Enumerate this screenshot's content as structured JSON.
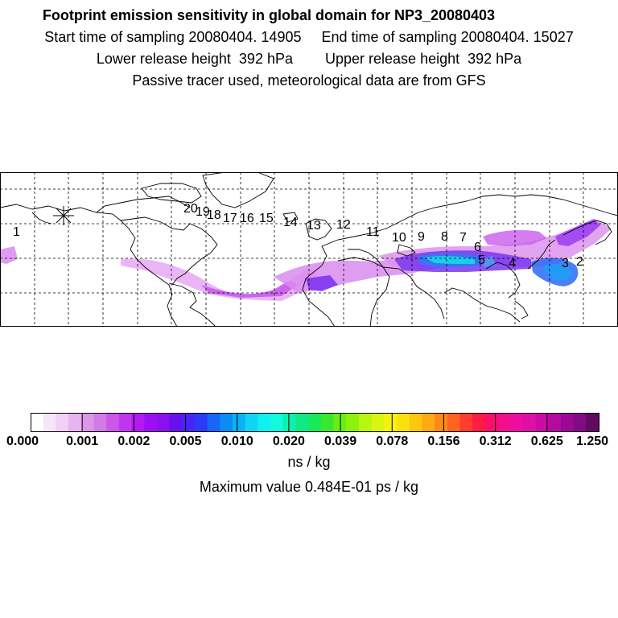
{
  "header": {
    "title": "Footprint emission sensitivity in global domain for NP3_20080403",
    "start_label": "Start time of sampling 20080404. 14905",
    "end_label": "End time of sampling 20080404. 15027",
    "lower_label": "Lower release height  392 hPa",
    "upper_label": "Upper release height  392 hPa",
    "note": "Passive tracer used, meteorological data are from GFS"
  },
  "map": {
    "projection": "equirectangular",
    "lon_range": [
      -180,
      180
    ],
    "lat_range": [
      -10,
      90
    ],
    "release_marker": "release-star",
    "track_labels": [
      "1",
      "2",
      "3",
      "4",
      "5",
      "6",
      "7",
      "8",
      "9",
      "10",
      "11",
      "12",
      "13",
      "14",
      "15",
      "16",
      "17",
      "18",
      "19",
      "20"
    ]
  },
  "colorbar": {
    "tick_labels": [
      "0.000",
      "0.001",
      "0.002",
      "0.005",
      "0.010",
      "0.020",
      "0.039",
      "0.078",
      "0.156",
      "0.312",
      "0.625",
      "1.250"
    ],
    "colors": [
      "#ffffff",
      "#f7e6f9",
      "#f0d0f4",
      "#e6b4ee",
      "#dc96e8",
      "#d37ae8",
      "#cc55ea",
      "#c036ee",
      "#b21af3",
      "#9d0ff3",
      "#8a10f0",
      "#6611ee",
      "#4a24f5",
      "#2a3cf8",
      "#1666f8",
      "#0d8bf4",
      "#0cb2f5",
      "#11d4f5",
      "#10f0ee",
      "#10fadb",
      "#0ef0b0",
      "#10e884",
      "#1ae858",
      "#38e830",
      "#6ced10",
      "#90f20c",
      "#b8f510",
      "#dcf414",
      "#f4f30e",
      "#fae10c",
      "#fec60e",
      "#feaa12",
      "#ff8817",
      "#ff6420",
      "#ff3d2e",
      "#fe1c46",
      "#fc0f6a",
      "#f40e8c",
      "#ec0ea2",
      "#e00ea8",
      "#cc0aa6",
      "#b40aa0",
      "#9a0896",
      "#820a86",
      "#600a60"
    ],
    "units": "ns / kg",
    "max_value_label": "Maximum value  0.484E-01 ps / kg"
  }
}
